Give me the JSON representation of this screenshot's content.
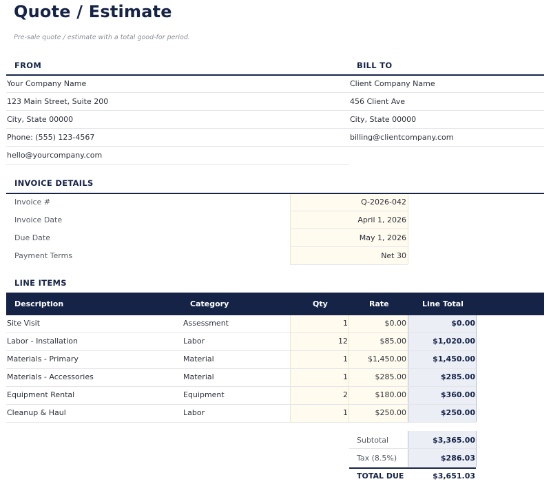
{
  "title": "Quote / Estimate",
  "subtitle": "Pre-sale quote / estimate with a total good-for period.",
  "from": {
    "heading": "FROM",
    "lines": [
      "Your Company Name",
      "123 Main Street, Suite 200",
      "City, State 00000",
      "Phone: (555) 123-4567",
      "hello@yourcompany.com"
    ]
  },
  "bill_to": {
    "heading": "BILL TO",
    "lines": [
      "Client Company Name",
      "456 Client Ave",
      "City, State 00000",
      "billing@clientcompany.com"
    ]
  },
  "invoice_details": {
    "heading": "INVOICE DETAILS",
    "rows": [
      {
        "label": "Invoice #",
        "value": "Q-2026-042"
      },
      {
        "label": "Invoice Date",
        "value": "April 1, 2026"
      },
      {
        "label": "Due Date",
        "value": "May 1, 2026"
      },
      {
        "label": "Payment Terms",
        "value": "Net 30"
      }
    ]
  },
  "line_items": {
    "heading": "LINE ITEMS",
    "columns": {
      "description": "Description",
      "category": "Category",
      "qty": "Qty",
      "rate": "Rate",
      "total": "Line Total"
    },
    "rows": [
      {
        "description": "Site Visit",
        "category": "Assessment",
        "qty": "1",
        "rate": "$0.00",
        "total": "$0.00"
      },
      {
        "description": "Labor - Installation",
        "category": "Labor",
        "qty": "12",
        "rate": "$85.00",
        "total": "$1,020.00"
      },
      {
        "description": "Materials - Primary",
        "category": "Material",
        "qty": "1",
        "rate": "$1,450.00",
        "total": "$1,450.00"
      },
      {
        "description": "Materials - Accessories",
        "category": "Material",
        "qty": "1",
        "rate": "$285.00",
        "total": "$285.00"
      },
      {
        "description": "Equipment Rental",
        "category": "Equipment",
        "qty": "2",
        "rate": "$180.00",
        "total": "$360.00"
      },
      {
        "description": "Cleanup & Haul",
        "category": "Labor",
        "qty": "1",
        "rate": "$250.00",
        "total": "$250.00"
      }
    ]
  },
  "totals": {
    "subtotal_label": "Subtotal",
    "subtotal": "$3,365.00",
    "tax_label": "Tax (8.5%)",
    "tax": "$286.03",
    "total_label": "TOTAL DUE",
    "total": "$3,651.03"
  },
  "colors": {
    "navy": "#152347",
    "cream": "#fffbee",
    "light_blue": "#eceef6"
  }
}
